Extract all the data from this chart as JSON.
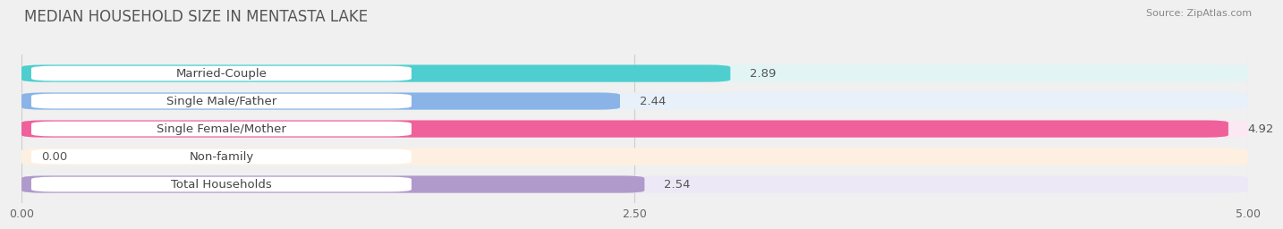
{
  "title": "MEDIAN HOUSEHOLD SIZE IN MENTASTA LAKE",
  "source": "Source: ZipAtlas.com",
  "categories": [
    "Married-Couple",
    "Single Male/Father",
    "Single Female/Mother",
    "Non-family",
    "Total Households"
  ],
  "values": [
    2.89,
    2.44,
    4.92,
    0.0,
    2.54
  ],
  "bar_colors": [
    "#4ecece",
    "#8ab4e8",
    "#f0609a",
    "#f5c98c",
    "#b09acc"
  ],
  "bar_background_colors": [
    "#e2f4f4",
    "#e8f0fa",
    "#fce8f3",
    "#fdf0e0",
    "#ede8f5"
  ],
  "label_bg_color": "#ffffff",
  "xlim": [
    0,
    5.0
  ],
  "xticks": [
    0.0,
    2.5,
    5.0
  ],
  "xtick_labels": [
    "0.00",
    "2.50",
    "5.00"
  ],
  "title_fontsize": 12,
  "label_fontsize": 9.5,
  "value_fontsize": 9.5,
  "tick_fontsize": 9,
  "background_color": "#f0f0f0"
}
